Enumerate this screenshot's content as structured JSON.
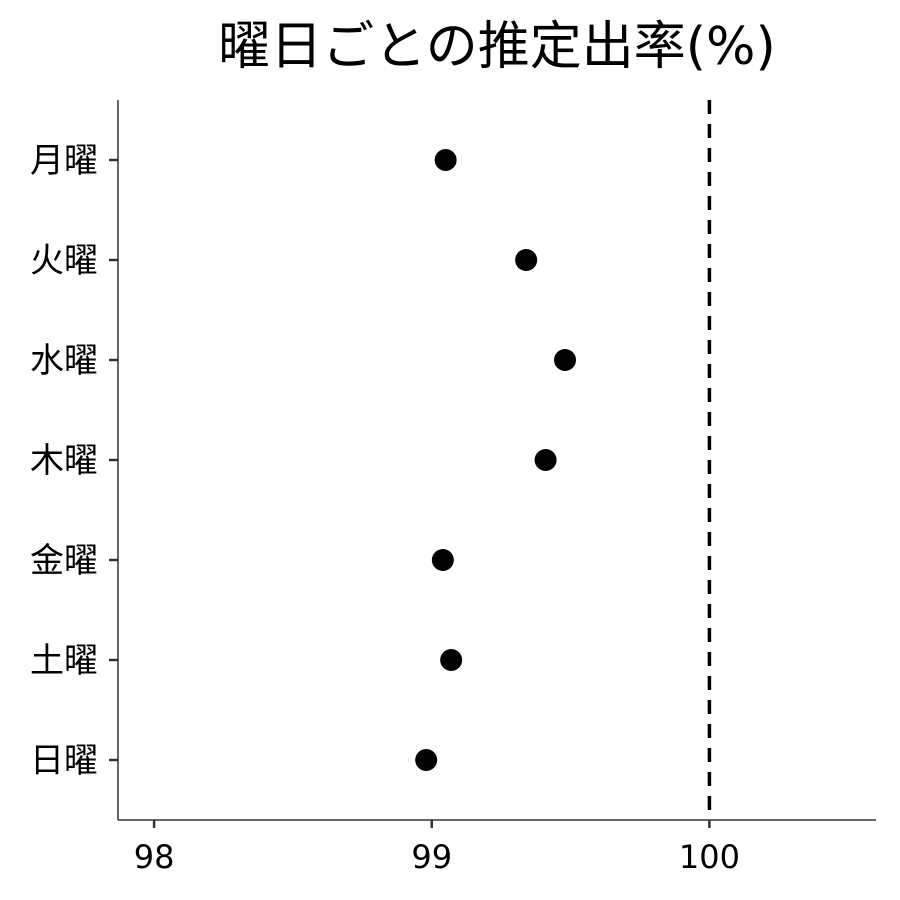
{
  "chart_data": {
    "type": "scatter",
    "title": "曜日ごとの推定出率(%)",
    "xlabel": "",
    "ylabel": "",
    "xlim": [
      97.87,
      100.6
    ],
    "xticks": [
      "98",
      "99",
      "100"
    ],
    "categories": [
      "月曜",
      "火曜",
      "水曜",
      "木曜",
      "金曜",
      "土曜",
      "日曜"
    ],
    "values": [
      99.05,
      99.34,
      99.48,
      99.41,
      99.04,
      99.07,
      98.98
    ],
    "reference_line": {
      "x": 100,
      "style": "dashed"
    },
    "grid": false,
    "colors": {
      "point": "#000000",
      "axis": "#333333",
      "refline": "#000000"
    }
  }
}
